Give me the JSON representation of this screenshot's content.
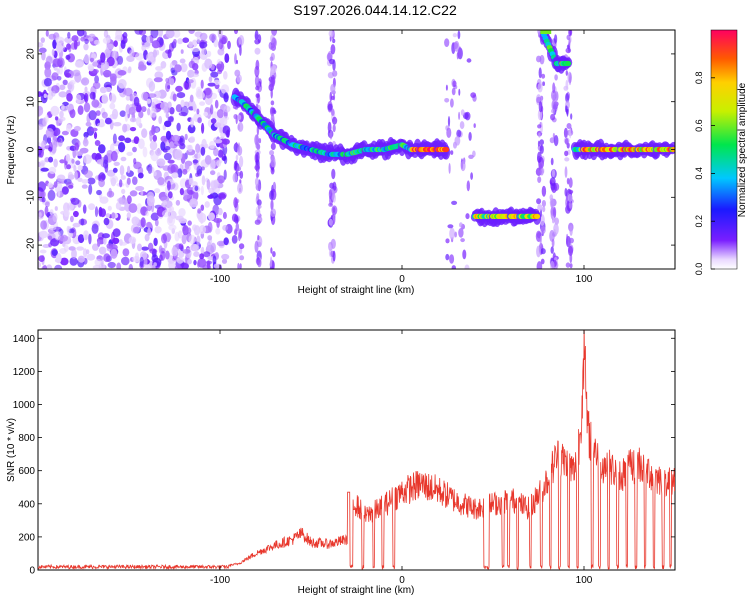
{
  "title": "S197.2026.044.14.12.C22",
  "chart_data": [
    {
      "type": "heatmap",
      "name": "spectrogram",
      "xlabel": "Height of straight line (km)",
      "ylabel": "Frequency (Hz)",
      "xlim": [
        -200,
        150
      ],
      "ylim": [
        -25,
        25
      ],
      "xticks": [
        -100,
        0,
        100
      ],
      "yticks": [
        -20,
        -10,
        0,
        10,
        20
      ],
      "colorbar": {
        "label": "Normalized spectral amplitude",
        "range": [
          0,
          1
        ],
        "ticks": [
          0.0,
          0.2,
          0.4,
          0.6,
          0.8
        ]
      },
      "ridge": {
        "description_points_x": [
          -92,
          -88,
          -80,
          -70,
          -60,
          -50,
          -40,
          -30,
          -20,
          -10,
          0,
          5,
          10,
          20,
          25,
          40,
          50,
          60,
          65,
          75,
          78,
          85,
          88,
          92,
          95,
          100,
          110,
          120,
          130,
          140,
          150
        ],
        "description_points_y": [
          11,
          10,
          7,
          3,
          1,
          0,
          -1,
          -1,
          0,
          0,
          1,
          0,
          0,
          0,
          0,
          -14,
          -14,
          -14,
          -14,
          -14,
          24,
          18,
          18,
          18,
          0,
          0,
          0,
          0,
          0,
          0,
          0
        ]
      },
      "noise_region_x": [
        -200,
        -95
      ]
    },
    {
      "type": "line",
      "name": "snr",
      "xlabel": "Height of straight line (km)",
      "ylabel": "SNR (10 * v/v)",
      "xlim": [
        -200,
        150
      ],
      "ylim": [
        0,
        1450
      ],
      "xticks": [
        -100,
        0,
        100
      ],
      "yticks": [
        0,
        200,
        400,
        600,
        800,
        1000,
        1200,
        1400
      ],
      "color": "#e8372c",
      "envelope_x": [
        -200,
        -100,
        -90,
        -80,
        -70,
        -60,
        -55,
        -50,
        -40,
        -30,
        -28,
        -20,
        -10,
        0,
        10,
        20,
        30,
        40,
        50,
        60,
        70,
        80,
        85,
        90,
        95,
        98,
        100,
        102,
        110,
        120,
        130,
        140,
        150
      ],
      "envelope_y": [
        20,
        20,
        40,
        110,
        160,
        200,
        240,
        180,
        170,
        200,
        470,
        350,
        420,
        510,
        560,
        520,
        450,
        400,
        430,
        460,
        400,
        590,
        740,
        700,
        640,
        900,
        1450,
        900,
        700,
        620,
        700,
        600,
        590
      ]
    }
  ]
}
